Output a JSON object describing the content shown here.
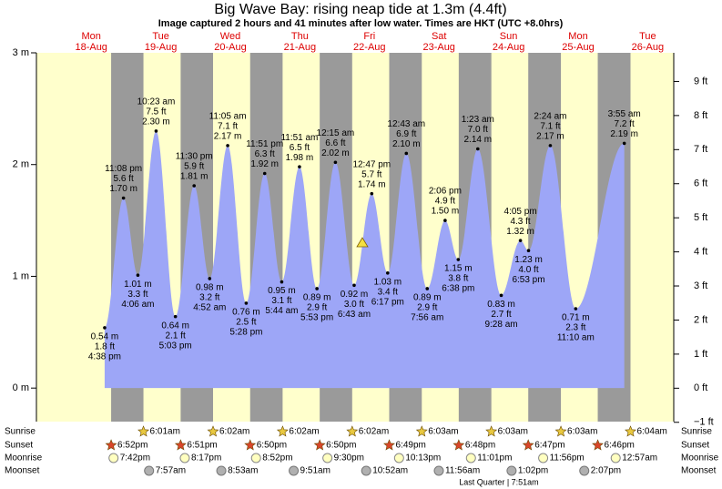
{
  "chart_data": {
    "type": "area",
    "title": "Big Wave Bay: rising  neap tide at 1.3m (4.4ft)",
    "subtitle": "Image captured 2 hours and 41 minutes after low water. Times are HKT (UTC +8.0hrs)",
    "ylim": [
      -0.3,
      3
    ],
    "yticks": [
      {
        "value": 0,
        "label": "0 m"
      },
      {
        "value": 1,
        "label": "1 m"
      },
      {
        "value": 2,
        "label": "2 m"
      },
      {
        "value": 3,
        "label": "3 m"
      }
    ],
    "y2lim": [
      -0.98,
      9.84
    ],
    "y2ticks": [
      {
        "value": -1,
        "label": "−1 ft"
      },
      {
        "value": 0,
        "label": "0 ft"
      },
      {
        "value": 1,
        "label": "1 ft"
      },
      {
        "value": 2,
        "label": "2 ft"
      },
      {
        "value": 3,
        "label": "3 ft"
      },
      {
        "value": 4,
        "label": "4 ft"
      },
      {
        "value": 5,
        "label": "5 ft"
      },
      {
        "value": 6,
        "label": "6 ft"
      },
      {
        "value": 7,
        "label": "7 ft"
      },
      {
        "value": 8,
        "label": "8 ft"
      },
      {
        "value": 9,
        "label": "9 ft"
      }
    ],
    "colors": {
      "day": "#ffffcc",
      "night": "#9a9a9a",
      "water": "#9da6f7"
    },
    "row_labels": {
      "sunrise": "Sunrise",
      "sunset": "Sunset",
      "moonrise": "Moonrise",
      "moonset": "Moonset"
    },
    "moon_phase": "Last Quarter | 7:51am",
    "days": [
      {
        "name": "Mon",
        "date": "18-Aug",
        "sunset": "6:52pm",
        "moonrise": "7:42pm",
        "tides": [
          {
            "time": "4:38 pm",
            "m": 0.54,
            "m_label": "0.54 m",
            "ft": 1.8,
            "ft_label": "1.8 ft"
          },
          {
            "time": "11:08 pm",
            "m": 1.7,
            "m_label": "1.70 m",
            "ft": 5.6,
            "ft_label": "5.6 ft"
          }
        ]
      },
      {
        "name": "Tue",
        "date": "19-Aug",
        "sunrise": "6:01am",
        "sunset": "6:51pm",
        "moonrise": "8:17pm",
        "moonset": "7:57am",
        "tides": [
          {
            "time": "4:06 am",
            "m": 1.01,
            "m_label": "1.01 m",
            "ft": 3.3,
            "ft_label": "3.3 ft"
          },
          {
            "time": "10:23 am",
            "m": 2.3,
            "m_label": "2.30 m",
            "ft": 7.5,
            "ft_label": "7.5 ft"
          },
          {
            "time": "5:03 pm",
            "m": 0.64,
            "m_label": "0.64 m",
            "ft": 2.1,
            "ft_label": "2.1 ft"
          },
          {
            "time": "11:30 pm",
            "m": 1.81,
            "m_label": "1.81 m",
            "ft": 5.9,
            "ft_label": "5.9 ft"
          }
        ]
      },
      {
        "name": "Wed",
        "date": "20-Aug",
        "sunrise": "6:02am",
        "sunset": "6:50pm",
        "moonrise": "8:52pm",
        "moonset": "8:53am",
        "tides": [
          {
            "time": "4:52 am",
            "m": 0.98,
            "m_label": "0.98 m",
            "ft": 3.2,
            "ft_label": "3.2 ft"
          },
          {
            "time": "11:05 am",
            "m": 2.17,
            "m_label": "2.17 m",
            "ft": 7.1,
            "ft_label": "7.1 ft"
          },
          {
            "time": "5:28 pm",
            "m": 0.76,
            "m_label": "0.76 m",
            "ft": 2.5,
            "ft_label": "2.5 ft"
          },
          {
            "time": "11:51 pm",
            "m": 1.92,
            "m_label": "1.92 m",
            "ft": 6.3,
            "ft_label": "6.3 ft"
          }
        ]
      },
      {
        "name": "Thu",
        "date": "21-Aug",
        "sunrise": "6:02am",
        "sunset": "6:50pm",
        "moonrise": "9:30pm",
        "moonset": "9:51am",
        "tides": [
          {
            "time": "5:44 am",
            "m": 0.95,
            "m_label": "0.95 m",
            "ft": 3.1,
            "ft_label": "3.1 ft"
          },
          {
            "time": "11:51 am",
            "m": 1.98,
            "m_label": "1.98 m",
            "ft": 6.5,
            "ft_label": "6.5 ft"
          },
          {
            "time": "5:53 pm",
            "m": 0.89,
            "m_label": "0.89 m",
            "ft": 2.9,
            "ft_label": "2.9 ft"
          }
        ]
      },
      {
        "name": "Fri",
        "date": "22-Aug",
        "sunrise": "6:02am",
        "sunset": "6:49pm",
        "moonrise": "10:13pm",
        "moonset": "10:52am",
        "tides": [
          {
            "time": "12:15 am",
            "m": 2.02,
            "m_label": "2.02 m",
            "ft": 6.6,
            "ft_label": "6.6 ft"
          },
          {
            "time": "6:43 am",
            "m": 0.92,
            "m_label": "0.92 m",
            "ft": 3.0,
            "ft_label": "3.0 ft"
          },
          {
            "time": "12:47 pm",
            "m": 1.74,
            "m_label": "1.74 m",
            "ft": 5.7,
            "ft_label": "5.7 ft"
          },
          {
            "time": "6:17 pm",
            "m": 1.03,
            "m_label": "1.03 m",
            "ft": 3.4,
            "ft_label": "3.4 ft"
          }
        ]
      },
      {
        "name": "Sat",
        "date": "23-Aug",
        "sunrise": "6:03am",
        "sunset": "6:48pm",
        "moonrise": "11:01pm",
        "moonset": "11:56am",
        "tides": [
          {
            "time": "12:43 am",
            "m": 2.1,
            "m_label": "2.10 m",
            "ft": 6.9,
            "ft_label": "6.9 ft"
          },
          {
            "time": "7:56 am",
            "m": 0.89,
            "m_label": "0.89 m",
            "ft": 2.9,
            "ft_label": "2.9 ft"
          },
          {
            "time": "2:06 pm",
            "m": 1.5,
            "m_label": "1.50 m",
            "ft": 4.9,
            "ft_label": "4.9 ft"
          },
          {
            "time": "6:38 pm",
            "m": 1.15,
            "m_label": "1.15 m",
            "ft": 3.8,
            "ft_label": "3.8 ft"
          }
        ]
      },
      {
        "name": "Sun",
        "date": "24-Aug",
        "sunrise": "6:03am",
        "sunset": "6:47pm",
        "moonrise": "11:56pm",
        "moonset": "1:02pm",
        "tides": [
          {
            "time": "1:23 am",
            "m": 2.14,
            "m_label": "2.14 m",
            "ft": 7.0,
            "ft_label": "7.0 ft"
          },
          {
            "time": "9:28 am",
            "m": 0.83,
            "m_label": "0.83 m",
            "ft": 2.7,
            "ft_label": "2.7 ft"
          },
          {
            "time": "4:05 pm",
            "m": 1.32,
            "m_label": "1.32 m",
            "ft": 4.3,
            "ft_label": "4.3 ft"
          },
          {
            "time": "6:53 pm",
            "m": 1.23,
            "m_label": "1.23 m",
            "ft": 4.0,
            "ft_label": "4.0 ft"
          }
        ]
      },
      {
        "name": "Mon",
        "date": "25-Aug",
        "sunrise": "6:03am",
        "sunset": "6:46pm",
        "moonset": "2:07pm",
        "tides": [
          {
            "time": "2:24 am",
            "m": 2.17,
            "m_label": "2.17 m",
            "ft": 7.1,
            "ft_label": "7.1 ft"
          },
          {
            "time": "11:10 am",
            "m": 0.71,
            "m_label": "0.71 m",
            "ft": 2.3,
            "ft_label": "2.3 ft"
          }
        ]
      },
      {
        "name": "Tue",
        "date": "26-Aug",
        "sunrise": "6:04am",
        "moonrise": "12:57am",
        "tides": [
          {
            "time": "3:55 am",
            "m": 2.19,
            "m_label": "2.19 m",
            "ft": 7.2,
            "ft_label": "7.2 ft"
          }
        ]
      }
    ]
  }
}
